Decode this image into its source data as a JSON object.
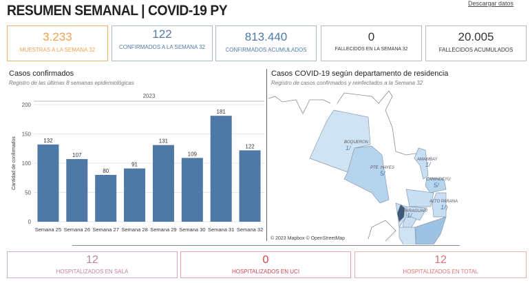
{
  "header": {
    "title": "RESUMEN SEMANAL | COVID-19 PY",
    "download": "Descargar datos"
  },
  "kpis": [
    {
      "value": "3.233",
      "label": "MUESTRAS A LA SEMANA 32",
      "color": "#f0a050"
    },
    {
      "value": "122",
      "label": "CONFIRMADOS A LA SEMANA 32",
      "color": "#4e79a7"
    },
    {
      "value": "813.440",
      "label": "CONFIRMADOS ACUMULADOS",
      "color": "#4e79a7"
    },
    {
      "value": "0",
      "label": "FALLECIDOS EN LA  SEMANA 32",
      "color": "#333333"
    },
    {
      "value": "20.005",
      "label": "FALLECIDOS ACUMULADOS",
      "color": "#333333"
    }
  ],
  "bar_panel": {
    "title": "Casos confirmados",
    "subtitle": "Registro de las últimas 8 semanas epidemiológicas"
  },
  "map_panel": {
    "title": "Casos COVID-19 según departamento de residencia",
    "subtitle": "Registro de casos confirmados y reinfectados a la  Semana 32",
    "attribution": "© 2023 Mapbox  © OpenStreetMap",
    "labels": [
      {
        "name": "BOQUERON",
        "value": "1/"
      },
      {
        "name": "PTE. HAYES",
        "value": "5/"
      },
      {
        "name": "AMAMBAY",
        "value": "1/"
      },
      {
        "name": "CANINDEYU",
        "value": "5/"
      },
      {
        "name": "ALTO PARANA",
        "value": "1/"
      },
      {
        "name": "PARAGUARI",
        "value": "1/"
      }
    ]
  },
  "chart_data": {
    "type": "bar",
    "title": "",
    "header": "2023",
    "ylabel": "Cantidad de confirmados",
    "categories": [
      "Semana 25",
      "Semana 26",
      "Semana 27",
      "Semana 28",
      "Semana 29",
      "Semana 30",
      "Semana 31",
      "Semana 32"
    ],
    "values": [
      132,
      107,
      80,
      91,
      131,
      109,
      181,
      122
    ],
    "ylim": [
      0,
      200
    ],
    "yticks": [
      0,
      50,
      100,
      150,
      200
    ],
    "color": "#4e79a7",
    "grid": true
  },
  "bottom": [
    {
      "value": "12",
      "label": "HOSPITALIZADOS EN SALA",
      "color": "#c080a8"
    },
    {
      "value": "0",
      "label": "HOSPITALIZADOS EN UCI",
      "color": "#d04050"
    },
    {
      "value": "12",
      "label": "HOSPITALIZADOS EN TOTAL",
      "color": "#e07070"
    }
  ]
}
